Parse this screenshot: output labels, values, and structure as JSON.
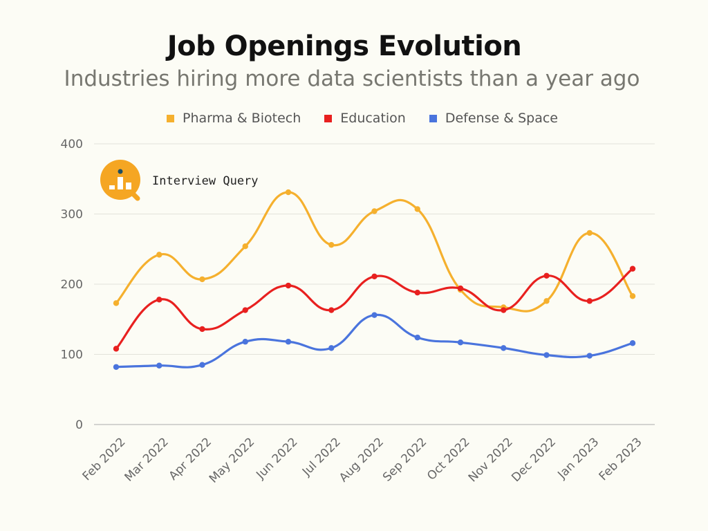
{
  "chart_data": {
    "type": "line",
    "title": "Job Openings Evolution",
    "subtitle": "Industries hiring more data scientists than a year ago",
    "categories": [
      "Feb 2022",
      "Mar 2022",
      "Apr 2022",
      "May 2022",
      "Jun 2022",
      "Jul 2022",
      "Aug 2022",
      "Sep 2022",
      "Oct 2022",
      "Nov 2022",
      "Dec 2022",
      "Jan 2023",
      "Feb 2023"
    ],
    "series": [
      {
        "name": "Pharma & Biotech",
        "color": "#f5b02e",
        "values": [
          173,
          242,
          207,
          254,
          331,
          256,
          304,
          307,
          192,
          167,
          176,
          273,
          183
        ]
      },
      {
        "name": "Education",
        "color": "#e8201f",
        "values": [
          108,
          178,
          136,
          163,
          198,
          163,
          211,
          188,
          194,
          163,
          212,
          176,
          222
        ]
      },
      {
        "name": "Defense & Space",
        "color": "#4a74dd",
        "values": [
          82,
          84,
          85,
          118,
          118,
          109,
          156,
          124,
          117,
          109,
          99,
          98,
          116
        ]
      }
    ],
    "yticks": [
      0,
      100,
      200,
      300,
      400
    ],
    "ylim": [
      0,
      400
    ],
    "xlabel": "",
    "ylabel": "",
    "legend_position": "top-center",
    "grid": true
  },
  "logo": {
    "text": "Interview Query",
    "color": "#f5a623"
  }
}
